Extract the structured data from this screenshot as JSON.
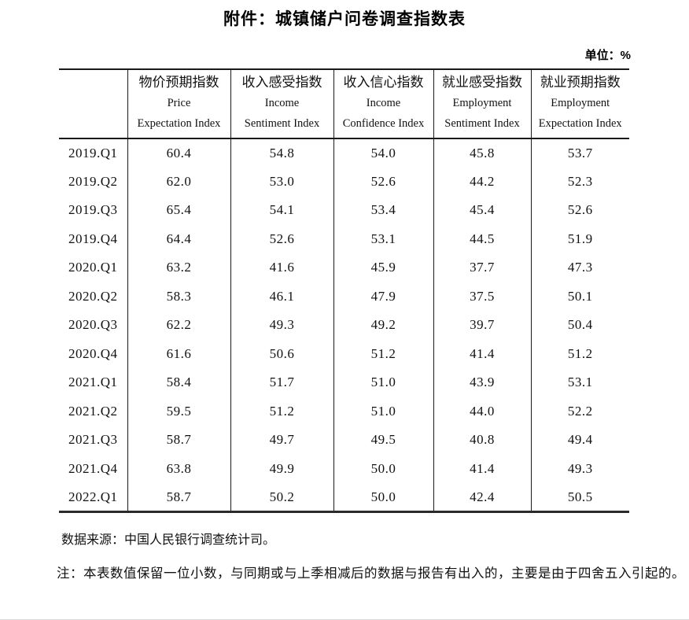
{
  "title": "附件：城镇储户问卷调查指数表",
  "unit_label": "单位：%",
  "table": {
    "row_header_label": "",
    "columns": [
      {
        "zh": "物价预期指数",
        "en_line1": "Price",
        "en_line2": "Expectation Index"
      },
      {
        "zh": "收入感受指数",
        "en_line1": "Income",
        "en_line2": "Sentiment Index"
      },
      {
        "zh": "收入信心指数",
        "en_line1": "Income",
        "en_line2": "Confidence Index"
      },
      {
        "zh": "就业感受指数",
        "en_line1": "Employment",
        "en_line2": "Sentiment Index"
      },
      {
        "zh": "就业预期指数",
        "en_line1": "Employment",
        "en_line2": "Expectation Index"
      }
    ],
    "rows": [
      {
        "period": "2019.Q1",
        "values": [
          "60.4",
          "54.8",
          "54.0",
          "45.8",
          "53.7"
        ]
      },
      {
        "period": "2019.Q2",
        "values": [
          "62.0",
          "53.0",
          "52.6",
          "44.2",
          "52.3"
        ]
      },
      {
        "period": "2019.Q3",
        "values": [
          "65.4",
          "54.1",
          "53.4",
          "45.4",
          "52.6"
        ]
      },
      {
        "period": "2019.Q4",
        "values": [
          "64.4",
          "52.6",
          "53.1",
          "44.5",
          "51.9"
        ]
      },
      {
        "period": "2020.Q1",
        "values": [
          "63.2",
          "41.6",
          "45.9",
          "37.7",
          "47.3"
        ]
      },
      {
        "period": "2020.Q2",
        "values": [
          "58.3",
          "46.1",
          "47.9",
          "37.5",
          "50.1"
        ]
      },
      {
        "period": "2020.Q3",
        "values": [
          "62.2",
          "49.3",
          "49.2",
          "39.7",
          "50.4"
        ]
      },
      {
        "period": "2020.Q4",
        "values": [
          "61.6",
          "50.6",
          "51.2",
          "41.4",
          "51.2"
        ]
      },
      {
        "period": "2021.Q1",
        "values": [
          "58.4",
          "51.7",
          "51.0",
          "43.9",
          "53.1"
        ]
      },
      {
        "period": "2021.Q2",
        "values": [
          "59.5",
          "51.2",
          "51.0",
          "44.0",
          "52.2"
        ]
      },
      {
        "period": "2021.Q3",
        "values": [
          "58.7",
          "49.7",
          "49.5",
          "40.8",
          "49.4"
        ]
      },
      {
        "period": "2021.Q4",
        "values": [
          "63.8",
          "49.9",
          "50.0",
          "41.4",
          "49.3"
        ]
      },
      {
        "period": "2022.Q1",
        "values": [
          "58.7",
          "50.2",
          "50.0",
          "42.4",
          "50.5"
        ]
      }
    ]
  },
  "source_note": "数据来源：中国人民银行调查统计司。",
  "footnote": "注：本表数值保留一位小数，与同期或与上季相减后的数据与报告有出入的，主要是由于四舍五入引起的。",
  "colors": {
    "text": "#111111",
    "table_border": "#1a1a1a",
    "page_edge": "#d8d8d8",
    "background": "#ffffff"
  }
}
